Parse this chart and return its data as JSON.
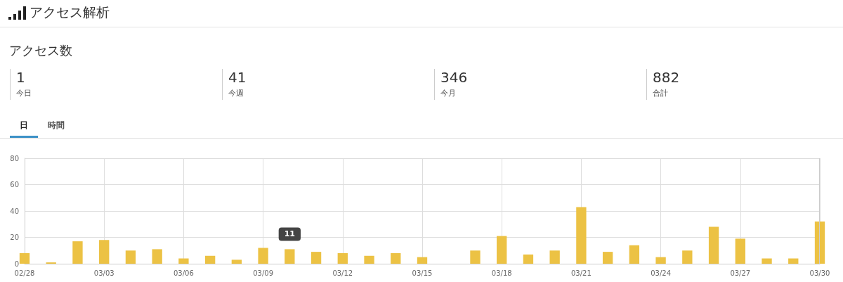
{
  "chart_data": {
    "type": "bar",
    "title": "アクセス解析",
    "subtitle": "アクセス数",
    "annotations": [
      "1",
      "今日",
      "41",
      "今週",
      "346",
      "今月",
      "882",
      "合計",
      "日",
      "時間"
    ],
    "categories": [
      "02/28",
      null,
      null,
      "03/03",
      null,
      null,
      "03/06",
      null,
      null,
      "03/09",
      null,
      null,
      "03/12",
      null,
      null,
      "03/15",
      null,
      null,
      "03/18",
      null,
      null,
      "03/21",
      null,
      null,
      "03/24",
      null,
      null,
      "03/27",
      null,
      null,
      "03/30"
    ],
    "values": [
      8,
      1,
      17,
      18,
      10,
      11,
      4,
      6,
      3,
      12,
      11,
      9,
      8,
      6,
      8,
      5,
      0,
      10,
      21,
      7,
      10,
      43,
      9,
      14,
      5,
      10,
      28,
      19,
      4,
      4,
      32
    ],
    "value_labels": [
      null,
      null,
      null,
      null,
      null,
      null,
      null,
      null,
      null,
      null,
      "11",
      null,
      null,
      null,
      null,
      null,
      null,
      null,
      null,
      null,
      null,
      null,
      null,
      null,
      null,
      null,
      null,
      null,
      null,
      null,
      null
    ],
    "color": "#ecc244",
    "ylim": [
      0,
      80
    ],
    "yticks": [
      0,
      20,
      40,
      60,
      80
    ],
    "grid": true
  }
}
